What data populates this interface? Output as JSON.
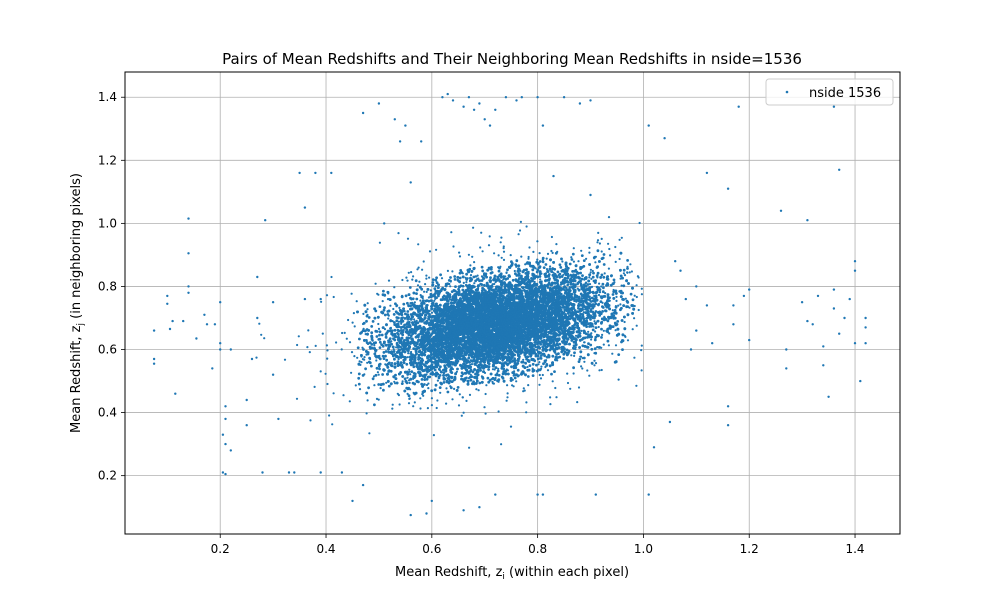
{
  "chart_data": {
    "type": "scatter",
    "title": "Pairs of Mean Redshifts and Their Neighboring Mean Redshifts in nside=1536",
    "xlabel": "Mean Redshift, z",
    "xlabel_sub": "i",
    "xlabel_suffix": " (within each pixel)",
    "ylabel": "Mean Redshift, z",
    "ylabel_sub": "j",
    "ylabel_suffix": " (in neighboring pixels)",
    "xlim": [
      0.02,
      1.485
    ],
    "ylim": [
      0.015,
      1.48
    ],
    "xticks": [
      0.2,
      0.4,
      0.6,
      0.8,
      1.0,
      1.2,
      1.4
    ],
    "xtick_labels": [
      "0.2",
      "0.4",
      "0.6",
      "0.8",
      "1.0",
      "1.2",
      "1.4"
    ],
    "yticks": [
      0.2,
      0.4,
      0.6,
      0.8,
      1.0,
      1.2,
      1.4
    ],
    "ytick_labels": [
      "0.2",
      "0.4",
      "0.6",
      "0.8",
      "1.0",
      "1.2",
      "1.4"
    ],
    "grid": true,
    "legend_position": "top-right",
    "series": [
      {
        "name": "nside 1536",
        "color": "#1f77b4",
        "dense_core": {
          "center": [
            0.72,
            0.68
          ],
          "spread_x": 0.14,
          "spread_y": 0.12,
          "tilt": 0.35
        },
        "points": [
          [
            0.075,
            0.66
          ],
          [
            0.075,
            0.57
          ],
          [
            0.075,
            0.555
          ],
          [
            0.1,
            0.77
          ],
          [
            0.1,
            0.745
          ],
          [
            0.11,
            0.69
          ],
          [
            0.105,
            0.665
          ],
          [
            0.115,
            0.46
          ],
          [
            0.14,
            1.015
          ],
          [
            0.14,
            0.905
          ],
          [
            0.14,
            0.8
          ],
          [
            0.14,
            0.78
          ],
          [
            0.155,
            0.635
          ],
          [
            0.17,
            0.71
          ],
          [
            0.175,
            0.68
          ],
          [
            0.19,
            0.68
          ],
          [
            0.185,
            0.54
          ],
          [
            0.2,
            0.75
          ],
          [
            0.2,
            0.62
          ],
          [
            0.2,
            0.6
          ],
          [
            0.21,
            0.42
          ],
          [
            0.21,
            0.38
          ],
          [
            0.205,
            0.33
          ],
          [
            0.21,
            0.3
          ],
          [
            0.205,
            0.21
          ],
          [
            0.21,
            0.205
          ],
          [
            0.27,
            0.83
          ],
          [
            0.27,
            0.7
          ],
          [
            0.28,
            0.21
          ],
          [
            0.285,
            1.01
          ],
          [
            0.3,
            0.75
          ],
          [
            0.3,
            0.52
          ],
          [
            0.31,
            0.38
          ],
          [
            0.33,
            0.21
          ],
          [
            0.34,
            0.21
          ],
          [
            0.35,
            1.16
          ],
          [
            0.36,
            1.05
          ],
          [
            0.36,
            0.76
          ],
          [
            0.38,
            1.16
          ],
          [
            0.39,
            0.76
          ],
          [
            0.39,
            0.21
          ],
          [
            0.41,
            1.16
          ],
          [
            0.43,
            0.21
          ],
          [
            0.45,
            0.12
          ],
          [
            0.47,
            1.35
          ],
          [
            0.47,
            0.17
          ],
          [
            0.5,
            1.38
          ],
          [
            0.51,
            1.0
          ],
          [
            0.53,
            1.33
          ],
          [
            0.54,
            1.26
          ],
          [
            0.55,
            1.31
          ],
          [
            0.56,
            1.13
          ],
          [
            0.56,
            0.075
          ],
          [
            0.58,
            1.26
          ],
          [
            0.59,
            0.08
          ],
          [
            0.6,
            0.12
          ],
          [
            0.62,
            1.4
          ],
          [
            0.63,
            1.41
          ],
          [
            0.64,
            1.39
          ],
          [
            0.66,
            1.37
          ],
          [
            0.67,
            1.4
          ],
          [
            0.68,
            1.36
          ],
          [
            0.69,
            1.38
          ],
          [
            0.7,
            1.33
          ],
          [
            0.71,
            1.31
          ],
          [
            0.72,
            1.36
          ],
          [
            0.74,
            1.4
          ],
          [
            0.76,
            1.39
          ],
          [
            0.77,
            1.4
          ],
          [
            0.8,
            1.4
          ],
          [
            0.81,
            1.31
          ],
          [
            0.83,
            1.15
          ],
          [
            0.85,
            1.4
          ],
          [
            0.88,
            1.38
          ],
          [
            0.9,
            1.39
          ],
          [
            0.9,
            1.09
          ],
          [
            0.66,
            0.09
          ],
          [
            0.69,
            0.1
          ],
          [
            0.72,
            0.14
          ],
          [
            0.8,
            0.14
          ],
          [
            0.81,
            0.14
          ],
          [
            0.91,
            0.14
          ],
          [
            1.01,
            0.14
          ],
          [
            1.01,
            1.31
          ],
          [
            1.02,
            0.29
          ],
          [
            1.04,
            1.27
          ],
          [
            1.05,
            0.37
          ],
          [
            1.06,
            0.88
          ],
          [
            1.07,
            0.85
          ],
          [
            1.08,
            0.76
          ],
          [
            1.09,
            0.6
          ],
          [
            1.1,
            0.8
          ],
          [
            1.1,
            0.66
          ],
          [
            1.12,
            0.74
          ],
          [
            1.12,
            1.16
          ],
          [
            1.13,
            0.62
          ],
          [
            1.16,
            1.11
          ],
          [
            1.16,
            0.42
          ],
          [
            1.16,
            0.36
          ],
          [
            1.17,
            0.74
          ],
          [
            1.17,
            0.68
          ],
          [
            1.18,
            1.37
          ],
          [
            1.19,
            0.77
          ],
          [
            1.2,
            0.79
          ],
          [
            1.2,
            0.63
          ],
          [
            1.26,
            1.04
          ],
          [
            1.27,
            0.6
          ],
          [
            1.27,
            0.54
          ],
          [
            1.3,
            0.75
          ],
          [
            1.31,
            0.69
          ],
          [
            1.31,
            1.01
          ],
          [
            1.32,
            0.68
          ],
          [
            1.33,
            0.77
          ],
          [
            1.34,
            0.55
          ],
          [
            1.34,
            0.61
          ],
          [
            1.35,
            0.45
          ],
          [
            1.36,
            1.37
          ],
          [
            1.36,
            0.79
          ],
          [
            1.36,
            0.73
          ],
          [
            1.37,
            1.17
          ],
          [
            1.37,
            0.65
          ],
          [
            1.38,
            0.7
          ],
          [
            1.39,
            0.76
          ],
          [
            1.4,
            0.88
          ],
          [
            1.4,
            0.85
          ],
          [
            1.4,
            0.62
          ],
          [
            1.41,
            0.5
          ],
          [
            1.42,
            0.7
          ],
          [
            1.42,
            0.67
          ],
          [
            1.42,
            0.62
          ],
          [
            0.13,
            0.69
          ],
          [
            0.25,
            0.44
          ],
          [
            0.26,
            0.57
          ],
          [
            0.22,
            0.6
          ],
          [
            0.25,
            0.36
          ],
          [
            0.22,
            0.28
          ]
        ]
      }
    ]
  }
}
